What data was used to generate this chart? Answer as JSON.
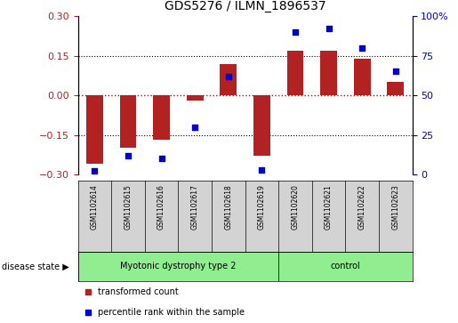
{
  "title": "GDS5276 / ILMN_1896537",
  "samples": [
    "GSM1102614",
    "GSM1102615",
    "GSM1102616",
    "GSM1102617",
    "GSM1102618",
    "GSM1102619",
    "GSM1102620",
    "GSM1102621",
    "GSM1102622",
    "GSM1102623"
  ],
  "transformed_count": [
    -0.26,
    -0.2,
    -0.17,
    -0.02,
    0.12,
    -0.23,
    0.17,
    0.17,
    0.14,
    0.05
  ],
  "percentile_rank": [
    2,
    12,
    10,
    30,
    62,
    3,
    90,
    92,
    80,
    65
  ],
  "disease_groups": [
    {
      "label": "Myotonic dystrophy type 2",
      "start": 0,
      "end": 6,
      "color": "#90EE90"
    },
    {
      "label": "control",
      "start": 6,
      "end": 10,
      "color": "#90EE90"
    }
  ],
  "bar_color": "#B22222",
  "dot_color": "#0000CD",
  "ylim_left": [
    -0.3,
    0.3
  ],
  "ylim_right": [
    0,
    100
  ],
  "yticks_left": [
    -0.3,
    -0.15,
    0,
    0.15,
    0.3
  ],
  "yticks_right": [
    0,
    25,
    50,
    75,
    100
  ],
  "hlines": [
    0.15,
    0,
    -0.15
  ],
  "background_color": "#ffffff",
  "plot_bg_color": "#ffffff",
  "legend_labels": [
    "transformed count",
    "percentile rank within the sample"
  ],
  "disease_state_label": "disease state"
}
